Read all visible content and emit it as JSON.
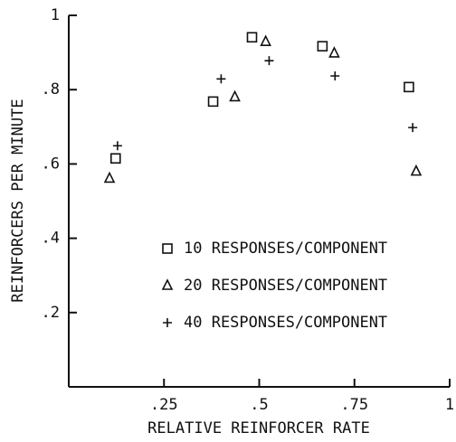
{
  "chart_data": {
    "type": "scatter",
    "x_label": "RELATIVE REINFORCER RATE",
    "y_label": "REINFORCERS PER MINUTE",
    "xlim": [
      0,
      1
    ],
    "ylim": [
      0,
      1
    ],
    "xticks": [
      {
        "value": 0.25,
        "label": ".25"
      },
      {
        "value": 0.5,
        "label": ".5"
      },
      {
        "value": 0.75,
        "label": ".75"
      },
      1
    ],
    "yticks": [
      {
        "value": 0.2,
        "label": ".2"
      },
      {
        "value": 0.4,
        "label": ".4"
      },
      {
        "value": 0.6,
        "label": ".6"
      },
      {
        "value": 0.8,
        "label": ".8"
      },
      1
    ],
    "legend": "lower right",
    "series": [
      {
        "name": "10 RESPONSES/COMPONENT",
        "marker": "square",
        "color": "#111111",
        "x": [
          0.123,
          0.379,
          0.481,
          0.666,
          0.893
        ],
        "values": [
          0.615,
          0.768,
          0.941,
          0.917,
          0.807
        ]
      },
      {
        "name": "20 RESPONSES/COMPONENT",
        "marker": "triangle",
        "color": "#111111",
        "x": [
          0.107,
          0.436,
          0.517,
          0.697,
          0.912
        ],
        "values": [
          0.561,
          0.78,
          0.929,
          0.898,
          0.58
        ]
      },
      {
        "name": "40 RESPONSES/COMPONENT",
        "marker": "plus",
        "color": "#111111",
        "x": [
          0.128,
          0.4,
          0.526,
          0.699,
          0.903
        ],
        "values": [
          0.649,
          0.829,
          0.878,
          0.837,
          0.698
        ]
      }
    ]
  }
}
